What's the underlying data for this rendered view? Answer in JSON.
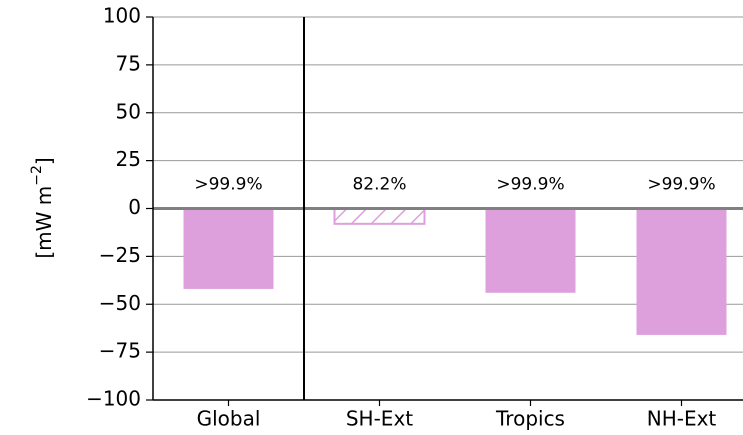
{
  "chart_data": {
    "type": "bar",
    "ylabel": "[mW m",
    "ylabel_sup": "−2",
    "ylabel_end": "]",
    "categories": [
      "Global",
      "SH-Ext",
      "Tropics",
      "NH-Ext"
    ],
    "values": [
      -42,
      -8,
      -44,
      -66
    ],
    "annotations": [
      ">99.9%",
      "82.2%",
      ">99.9%",
      ">99.9%"
    ],
    "hatched": [
      false,
      true,
      false,
      false
    ],
    "color": "#dda0dd",
    "ylim": [
      -100,
      100
    ],
    "yticks": [
      {
        "value": -100,
        "label": "−100"
      },
      {
        "value": -75,
        "label": "−75"
      },
      {
        "value": -50,
        "label": "−50"
      },
      {
        "value": -25,
        "label": "−25"
      },
      0,
      25,
      50,
      75,
      100
    ],
    "grid": true
  }
}
